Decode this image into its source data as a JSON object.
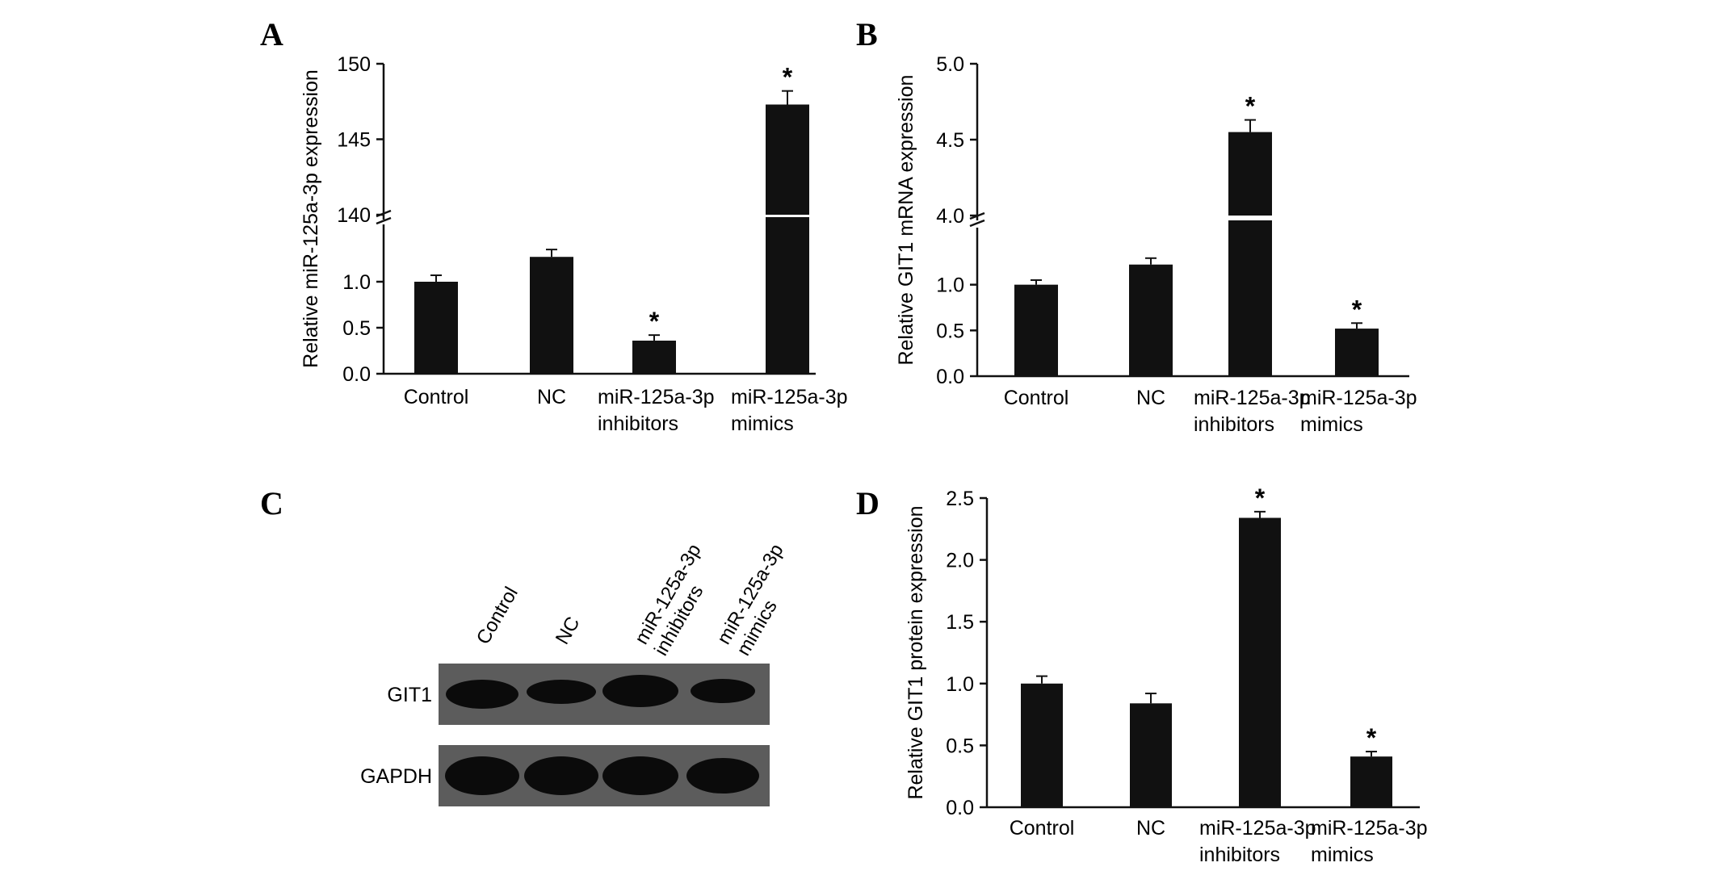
{
  "panels": [
    {
      "letter": "A",
      "chart_data": {
        "type": "bar",
        "broken_axis": true,
        "ylabel": "Relative miR-125a-3p expression",
        "categories": [
          [
            "Control"
          ],
          [
            "NC"
          ],
          [
            "miR-125a-3p",
            "inhibitors"
          ],
          [
            "miR-125a-3p",
            "mimics"
          ]
        ],
        "values": [
          1.0,
          1.27,
          0.36,
          147.3
        ],
        "errors": [
          0.07,
          0.08,
          0.06,
          0.9
        ],
        "significant": [
          false,
          false,
          true,
          true
        ],
        "lower_segment": {
          "ylim": [
            0,
            1.5
          ],
          "ticks": [
            "0.0",
            "0.5",
            "1.0"
          ],
          "tick_values": [
            0,
            0.5,
            1.0
          ]
        },
        "upper_segment": {
          "ylim": [
            140,
            150
          ],
          "ticks": [
            "140",
            "145",
            "150"
          ],
          "tick_values": [
            140,
            145,
            150
          ]
        }
      }
    },
    {
      "letter": "B",
      "chart_data": {
        "type": "bar",
        "broken_axis": true,
        "ylabel": "Relative GIT1 mRNA expression",
        "categories": [
          [
            "Control"
          ],
          [
            "NC"
          ],
          [
            "miR-125a-3p",
            "inhibitors"
          ],
          [
            "miR-125a-3p",
            "mimics"
          ]
        ],
        "values": [
          1.0,
          1.22,
          4.55,
          0.52
        ],
        "errors": [
          0.05,
          0.07,
          0.08,
          0.06
        ],
        "significant": [
          false,
          false,
          true,
          true
        ],
        "lower_segment": {
          "ylim": [
            0,
            1.5
          ],
          "ticks": [
            "0.0",
            "0.5",
            "1.0"
          ],
          "tick_values": [
            0,
            0.5,
            1.0
          ]
        },
        "upper_segment": {
          "ylim": [
            4.0,
            5.0
          ],
          "ticks": [
            "4.0",
            "4.5",
            "5.0"
          ],
          "tick_values": [
            4.0,
            4.5,
            5.0
          ]
        }
      }
    },
    {
      "letter": "D",
      "chart_data": {
        "type": "bar",
        "broken_axis": false,
        "ylabel": "Relative GIT1 protein expression",
        "categories": [
          [
            "Control"
          ],
          [
            "NC"
          ],
          [
            "miR-125a-3p",
            "inhibitors"
          ],
          [
            "miR-125a-3p",
            "mimics"
          ]
        ],
        "values": [
          1.0,
          0.84,
          2.34,
          0.41
        ],
        "errors": [
          0.06,
          0.08,
          0.05,
          0.04
        ],
        "significant": [
          false,
          false,
          true,
          true
        ],
        "ylim": [
          0,
          2.5
        ],
        "ticks": [
          "0.0",
          "0.5",
          "1.0",
          "1.5",
          "2.0",
          "2.5"
        ],
        "tick_values": [
          0,
          0.5,
          1.0,
          1.5,
          2.0,
          2.5
        ]
      }
    }
  ],
  "blot": {
    "letter": "C",
    "lanes": [
      [
        "Control"
      ],
      [
        "NC"
      ],
      [
        "miR-125a-3p",
        "inhibitors"
      ],
      [
        "miR-125a-3p",
        "mimics"
      ]
    ],
    "rows": [
      "GIT1",
      "GAPDH"
    ],
    "colors": {
      "gel": "#5c5c5c",
      "band": "#0b0b0b"
    }
  },
  "significance_marker": "*",
  "colors": {
    "bar": "#111111",
    "axis": "#111111"
  }
}
